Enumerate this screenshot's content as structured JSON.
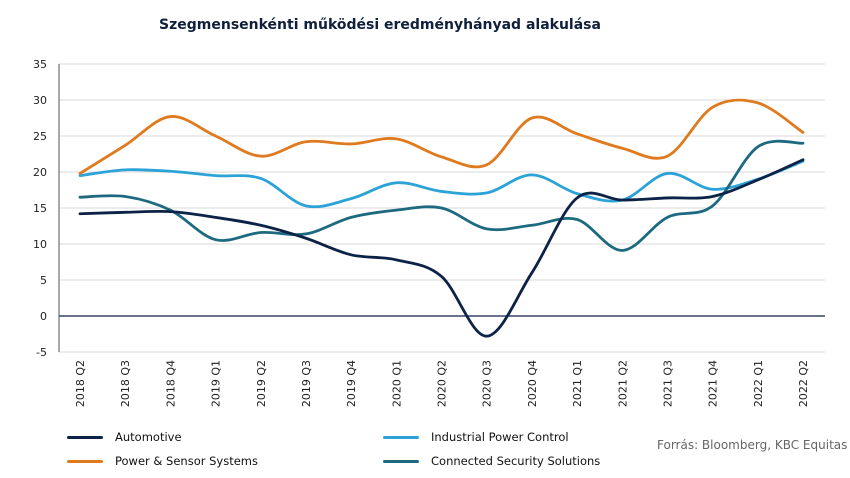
{
  "chart_data": {
    "type": "line",
    "title": "Szegmensenkénti működési eredményhányad alakulása",
    "categories": [
      "2018 Q2",
      "2018 Q3",
      "2018 Q4",
      "2019 Q1",
      "2019 Q2",
      "2019 Q3",
      "2019 Q4",
      "2020 Q1",
      "2020 Q2",
      "2020 Q3",
      "2020 Q4",
      "2021 Q1",
      "2021 Q2",
      "2021 Q3",
      "2021 Q4",
      "2022 Q1",
      "2022 Q2"
    ],
    "ylim": [
      -5,
      35
    ],
    "yticks": [
      "-5",
      "0",
      "5",
      "10",
      "15",
      "20",
      "25",
      "30",
      "35"
    ],
    "grid": true,
    "legend_position": "bottom",
    "series": [
      {
        "name": "Automotive",
        "color": "#0d2247",
        "values": [
          14.2,
          14.4,
          14.5,
          13.7,
          12.6,
          10.8,
          8.5,
          7.8,
          5.5,
          -2.8,
          6.0,
          16.4,
          16.1,
          16.4,
          16.6,
          18.9,
          21.7
        ]
      },
      {
        "name": "Power & Sensor Systems",
        "color": "#e07a1f",
        "values": [
          19.8,
          23.7,
          27.7,
          25.0,
          22.2,
          24.2,
          23.9,
          24.6,
          22.1,
          21.0,
          27.5,
          25.3,
          23.3,
          22.2,
          29.0,
          29.6,
          25.5
        ]
      },
      {
        "name": "Industrial Power Control",
        "color": "#2ca3d6",
        "values": [
          19.5,
          20.3,
          20.1,
          19.5,
          19.1,
          15.3,
          16.3,
          18.5,
          17.3,
          17.1,
          19.6,
          17.0,
          16.1,
          19.8,
          17.6,
          19.0,
          21.5
        ]
      },
      {
        "name": "Connected Security Solutions",
        "color": "#1d6a80",
        "values": [
          16.5,
          16.6,
          14.7,
          10.6,
          11.6,
          11.4,
          13.7,
          14.7,
          15.0,
          12.1,
          12.6,
          13.4,
          9.1,
          13.7,
          15.3,
          23.5,
          24.0
        ]
      }
    ],
    "source": "Forrás: Bloomberg, KBC Equitas"
  },
  "legend": [
    {
      "label": "Automotive",
      "color": "#0d2247"
    },
    {
      "label": "Power & Sensor Systems",
      "color": "#e07a1f"
    },
    {
      "label": "Industrial Power Control",
      "color": "#2ca3d6"
    },
    {
      "label": "Connected Security Solutions",
      "color": "#1d6a80"
    }
  ]
}
